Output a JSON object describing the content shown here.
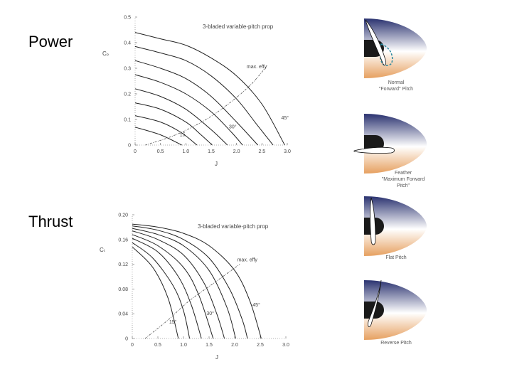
{
  "slide": {
    "power_label": "Power",
    "thrust_label": "Thrust"
  },
  "colors": {
    "spinner_top": "#2a3270",
    "spinner_mid": "#ffffff",
    "spinner_bottom": "#e6a060",
    "hub": "#1a1a1a",
    "dashed_blade": "#2a8aa0"
  },
  "chart_data": [
    {
      "type": "line",
      "title": "3-bladed variable-pitch prop",
      "xlabel": "J",
      "ylabel": "Cₚ",
      "xlim": [
        0,
        3.0
      ],
      "ylim": [
        0,
        0.5
      ],
      "xticks": [
        "0",
        "0.5",
        "1.0",
        "1.5",
        "2.0",
        "2.5",
        "3.0"
      ],
      "xtick_values": [
        0,
        0.5,
        1.0,
        1.5,
        2.0,
        2.5,
        3.0
      ],
      "yticks": [
        "0",
        "0.1",
        "0.2",
        "0.3",
        "0.4",
        "0.5"
      ],
      "ytick_values": [
        0,
        0.1,
        0.2,
        0.3,
        0.4,
        0.5
      ],
      "annotations": [
        {
          "text": "max. effy",
          "x": 2.2,
          "y": 0.3
        },
        {
          "text": "45°",
          "x": 2.88,
          "y": 0.1
        },
        {
          "text": "30°",
          "x": 1.85,
          "y": 0.065
        },
        {
          "text": "15",
          "x": 0.88,
          "y": 0.035
        }
      ],
      "series": [
        {
          "values": [
            [
              0,
              0.44
            ],
            [
              0.5,
              0.415
            ],
            [
              1.0,
              0.39
            ],
            [
              1.5,
              0.34
            ],
            [
              2.0,
              0.27
            ],
            [
              2.5,
              0.16
            ],
            [
              2.95,
              0.0
            ]
          ]
        },
        {
          "values": [
            [
              0,
              0.385
            ],
            [
              0.5,
              0.36
            ],
            [
              1.0,
              0.33
            ],
            [
              1.5,
              0.27
            ],
            [
              2.0,
              0.18
            ],
            [
              2.4,
              0.08
            ],
            [
              2.72,
              0.0
            ]
          ]
        },
        {
          "values": [
            [
              0,
              0.33
            ],
            [
              0.5,
              0.3
            ],
            [
              1.0,
              0.26
            ],
            [
              1.5,
              0.19
            ],
            [
              2.0,
              0.09
            ],
            [
              2.42,
              0.0
            ]
          ]
        },
        {
          "values": [
            [
              0,
              0.275
            ],
            [
              0.5,
              0.245
            ],
            [
              1.0,
              0.2
            ],
            [
              1.5,
              0.13
            ],
            [
              1.9,
              0.05
            ],
            [
              2.12,
              0.0
            ]
          ]
        },
        {
          "values": [
            [
              0,
              0.22
            ],
            [
              0.5,
              0.19
            ],
            [
              1.0,
              0.14
            ],
            [
              1.5,
              0.06
            ],
            [
              1.82,
              0.0
            ]
          ]
        },
        {
          "values": [
            [
              0,
              0.165
            ],
            [
              0.5,
              0.14
            ],
            [
              1.0,
              0.09
            ],
            [
              1.3,
              0.04
            ],
            [
              1.52,
              0.0
            ]
          ]
        },
        {
          "values": [
            [
              0,
              0.115
            ],
            [
              0.5,
              0.09
            ],
            [
              0.9,
              0.05
            ],
            [
              1.22,
              0.0
            ]
          ]
        },
        {
          "values": [
            [
              0,
              0.07
            ],
            [
              0.5,
              0.04
            ],
            [
              0.92,
              0.0
            ]
          ]
        }
      ],
      "max_efficiency_line": [
        [
          0.2,
          0.0
        ],
        [
          0.8,
          0.04
        ],
        [
          1.4,
          0.1
        ],
        [
          1.9,
          0.17
        ],
        [
          2.3,
          0.24
        ],
        [
          2.6,
          0.31
        ]
      ]
    },
    {
      "type": "line",
      "title": "3-bladed variable-pitch prop",
      "xlabel": "J",
      "ylabel": "Cₜ",
      "xlim": [
        0,
        3.0
      ],
      "ylim": [
        0,
        0.2
      ],
      "xticks": [
        "0",
        "0.5",
        "1.0",
        "1.5",
        "2.0",
        "2.5",
        "3.0"
      ],
      "xtick_values": [
        0,
        0.5,
        1.0,
        1.5,
        2.0,
        2.5,
        3.0
      ],
      "yticks": [
        "0",
        "0.04",
        "0.08",
        "0.12",
        "0.16",
        "0.20"
      ],
      "ytick_values": [
        0,
        0.04,
        0.08,
        0.12,
        0.16,
        0.2
      ],
      "annotations": [
        {
          "text": "max. effy",
          "x": 2.05,
          "y": 0.125
        },
        {
          "text": "45°",
          "x": 2.35,
          "y": 0.052
        },
        {
          "text": "30°",
          "x": 1.45,
          "y": 0.038
        },
        {
          "text": "15°",
          "x": 0.72,
          "y": 0.024
        }
      ],
      "series": [
        {
          "values": [
            [
              0,
              0.185
            ],
            [
              0.5,
              0.18
            ],
            [
              1.0,
              0.17
            ],
            [
              1.5,
              0.15
            ],
            [
              2.0,
              0.11
            ],
            [
              2.3,
              0.06
            ],
            [
              2.52,
              0.0
            ]
          ]
        },
        {
          "values": [
            [
              0,
              0.182
            ],
            [
              0.5,
              0.175
            ],
            [
              1.0,
              0.16
            ],
            [
              1.5,
              0.13
            ],
            [
              1.9,
              0.08
            ],
            [
              2.15,
              0.03
            ],
            [
              2.25,
              0.0
            ]
          ]
        },
        {
          "values": [
            [
              0,
              0.178
            ],
            [
              0.5,
              0.168
            ],
            [
              1.0,
              0.15
            ],
            [
              1.5,
              0.11
            ],
            [
              1.85,
              0.05
            ],
            [
              2.02,
              0.0
            ]
          ]
        },
        {
          "values": [
            [
              0,
              0.174
            ],
            [
              0.5,
              0.16
            ],
            [
              1.0,
              0.135
            ],
            [
              1.4,
              0.09
            ],
            [
              1.65,
              0.04
            ],
            [
              1.8,
              0.0
            ]
          ]
        },
        {
          "values": [
            [
              0,
              0.168
            ],
            [
              0.5,
              0.15
            ],
            [
              1.0,
              0.115
            ],
            [
              1.3,
              0.07
            ],
            [
              1.58,
              0.0
            ]
          ]
        },
        {
          "values": [
            [
              0,
              0.162
            ],
            [
              0.5,
              0.14
            ],
            [
              0.9,
              0.1
            ],
            [
              1.15,
              0.055
            ],
            [
              1.35,
              0.0
            ]
          ]
        },
        {
          "values": [
            [
              0,
              0.155
            ],
            [
              0.4,
              0.13
            ],
            [
              0.8,
              0.085
            ],
            [
              1.0,
              0.045
            ],
            [
              1.12,
              0.0
            ]
          ]
        },
        {
          "values": [
            [
              0,
              0.148
            ],
            [
              0.4,
              0.115
            ],
            [
              0.7,
              0.065
            ],
            [
              0.9,
              0.0
            ]
          ]
        }
      ],
      "max_efficiency_line": [
        [
          0.25,
          0.0
        ],
        [
          0.7,
          0.03
        ],
        [
          1.1,
          0.06
        ],
        [
          1.6,
          0.09
        ],
        [
          2.1,
          0.12
        ]
      ]
    }
  ],
  "pitch_diagrams": [
    {
      "caption_lines": [
        "Normal",
        "\"Forward\" Pitch"
      ],
      "blade": "normal"
    },
    {
      "caption_lines": [
        "Feather",
        "\"Maximum Forward",
        "Pitch\""
      ],
      "blade": "feather"
    },
    {
      "caption_lines": [
        "Flat Pitch"
      ],
      "blade": "flat"
    },
    {
      "caption_lines": [
        "Reverse Pitch"
      ],
      "blade": "reverse"
    }
  ]
}
